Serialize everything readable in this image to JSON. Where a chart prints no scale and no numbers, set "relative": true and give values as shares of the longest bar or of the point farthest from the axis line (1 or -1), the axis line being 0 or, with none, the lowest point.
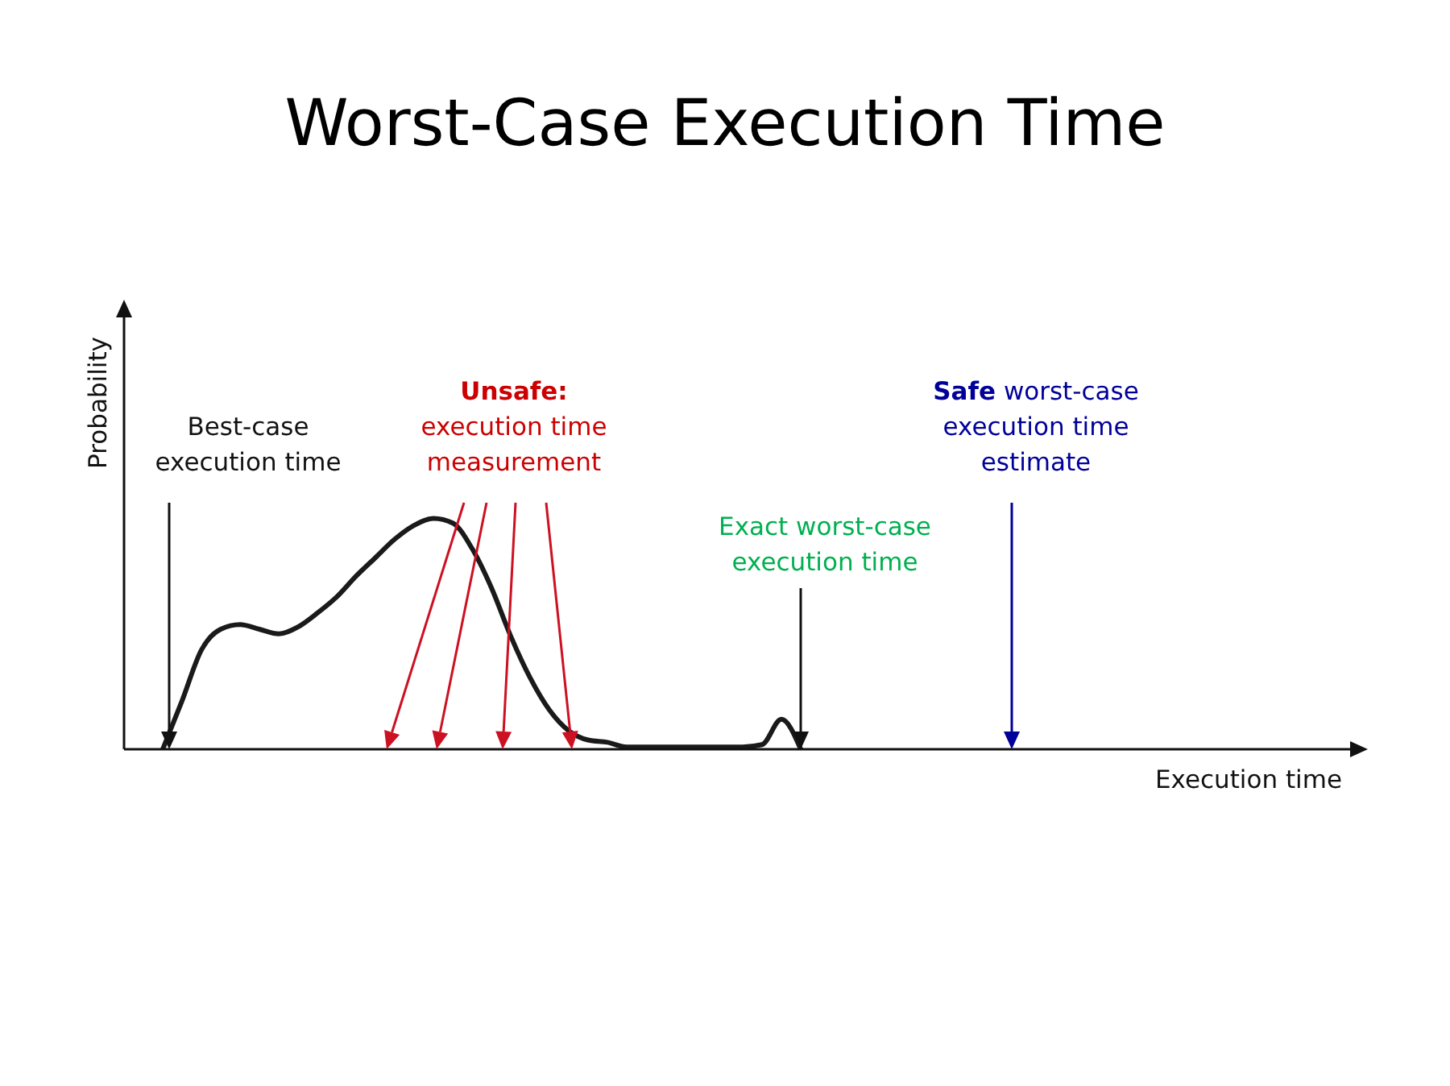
{
  "chart_data": {
    "type": "line",
    "title": "Worst-Case Execution Time",
    "xlabel": "Execution time",
    "ylabel": "Probability",
    "relative": true,
    "categories": [
      null,
      null,
      null,
      null,
      null,
      null,
      null,
      null,
      null,
      null,
      null,
      null,
      null,
      null,
      null,
      null,
      null,
      null,
      null,
      null,
      null,
      null,
      null,
      null,
      null,
      null,
      null,
      null,
      null,
      null,
      null,
      null,
      null,
      null,
      null,
      null,
      null,
      null,
      null,
      null,
      null,
      null,
      null,
      null,
      null,
      null,
      null,
      null,
      null,
      null,
      null,
      null,
      null,
      null,
      null,
      null,
      null,
      null,
      null,
      null,
      null,
      null,
      null,
      null,
      null
    ],
    "series": [
      {
        "color": "#1a1a1a",
        "values": [
          null,
          null,
          0,
          0.21,
          0.43,
          0.52,
          0.54,
          0.52,
          0.5,
          0.53,
          0.59,
          0.66,
          0.75,
          0.83,
          0.91,
          0.97,
          1,
          0.98,
          0.87,
          0.7,
          0.49,
          0.31,
          0.17,
          0.08,
          0.04,
          0.03,
          0.01,
          0.01,
          0.01,
          0.01,
          0.01,
          0.01,
          0.01,
          0.02,
          0.13,
          0,
          null,
          null,
          null,
          null,
          null,
          null,
          null,
          null,
          null,
          null,
          null,
          null,
          null,
          null,
          null,
          null,
          null,
          null,
          null,
          null,
          null,
          null,
          null,
          null,
          null,
          null,
          null,
          null,
          null
        ]
      }
    ],
    "annotations": [
      "Best-case execution time",
      "Unsafe: execution time measurement",
      "Exact worst-case execution time",
      "Safe worst-case execution time estimate"
    ]
  }
}
